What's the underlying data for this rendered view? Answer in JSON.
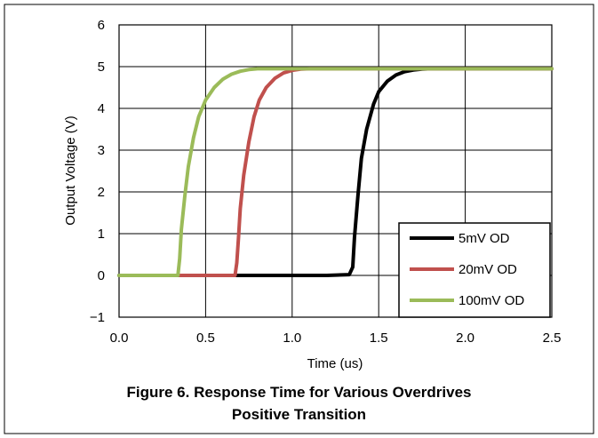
{
  "chart_data": {
    "type": "line",
    "title": "",
    "xlabel": "Time (us)",
    "ylabel": "Output Voltage (V)",
    "xlim": [
      0,
      2.5
    ],
    "ylim": [
      -1,
      6
    ],
    "xticks": [
      "0.0",
      "0.5",
      "1.0",
      "1.5",
      "2.0",
      "2.5"
    ],
    "yticks": [
      "6",
      "5",
      "4",
      "3",
      "2",
      "1",
      "0",
      "−1"
    ],
    "grid": true,
    "legend_position": "bottom-right",
    "series": [
      {
        "name": "5mV OD",
        "color": "#000000",
        "x": [
          0.0,
          0.69,
          1.0,
          1.2,
          1.33,
          1.35,
          1.36,
          1.38,
          1.4,
          1.43,
          1.47,
          1.5,
          1.55,
          1.6,
          1.65,
          1.7,
          1.75,
          1.8,
          1.9,
          2.0,
          2.5
        ],
        "y": [
          0.0,
          0.0,
          0.0,
          0.0,
          0.02,
          0.2,
          0.9,
          1.9,
          2.8,
          3.5,
          4.1,
          4.4,
          4.65,
          4.8,
          4.88,
          4.92,
          4.94,
          4.95,
          4.95,
          4.95,
          4.95
        ]
      },
      {
        "name": "20mV OD",
        "color": "#c0504d",
        "x": [
          0.35,
          0.67,
          0.68,
          0.69,
          0.7,
          0.72,
          0.75,
          0.78,
          0.81,
          0.85,
          0.9,
          0.95,
          1.0,
          1.05,
          1.1,
          1.2,
          1.4,
          2.5
        ],
        "y": [
          0.0,
          0.0,
          0.3,
          0.9,
          1.6,
          2.4,
          3.2,
          3.8,
          4.2,
          4.5,
          4.72,
          4.85,
          4.91,
          4.94,
          4.95,
          4.95,
          4.95,
          4.95
        ]
      },
      {
        "name": "100mV OD",
        "color": "#9bbb59",
        "x": [
          0.0,
          0.34,
          0.35,
          0.36,
          0.38,
          0.4,
          0.43,
          0.46,
          0.5,
          0.55,
          0.6,
          0.65,
          0.7,
          0.75,
          0.8,
          0.9,
          1.0,
          1.5,
          2.0,
          2.5
        ],
        "y": [
          0.0,
          0.0,
          0.4,
          1.1,
          1.9,
          2.6,
          3.3,
          3.8,
          4.2,
          4.5,
          4.7,
          4.82,
          4.89,
          4.93,
          4.95,
          4.95,
          4.95,
          4.95,
          4.95,
          4.95
        ]
      }
    ]
  },
  "caption": {
    "line1": "Figure 6. Response Time for Various Overdrives",
    "line2": "Positive Transition"
  }
}
